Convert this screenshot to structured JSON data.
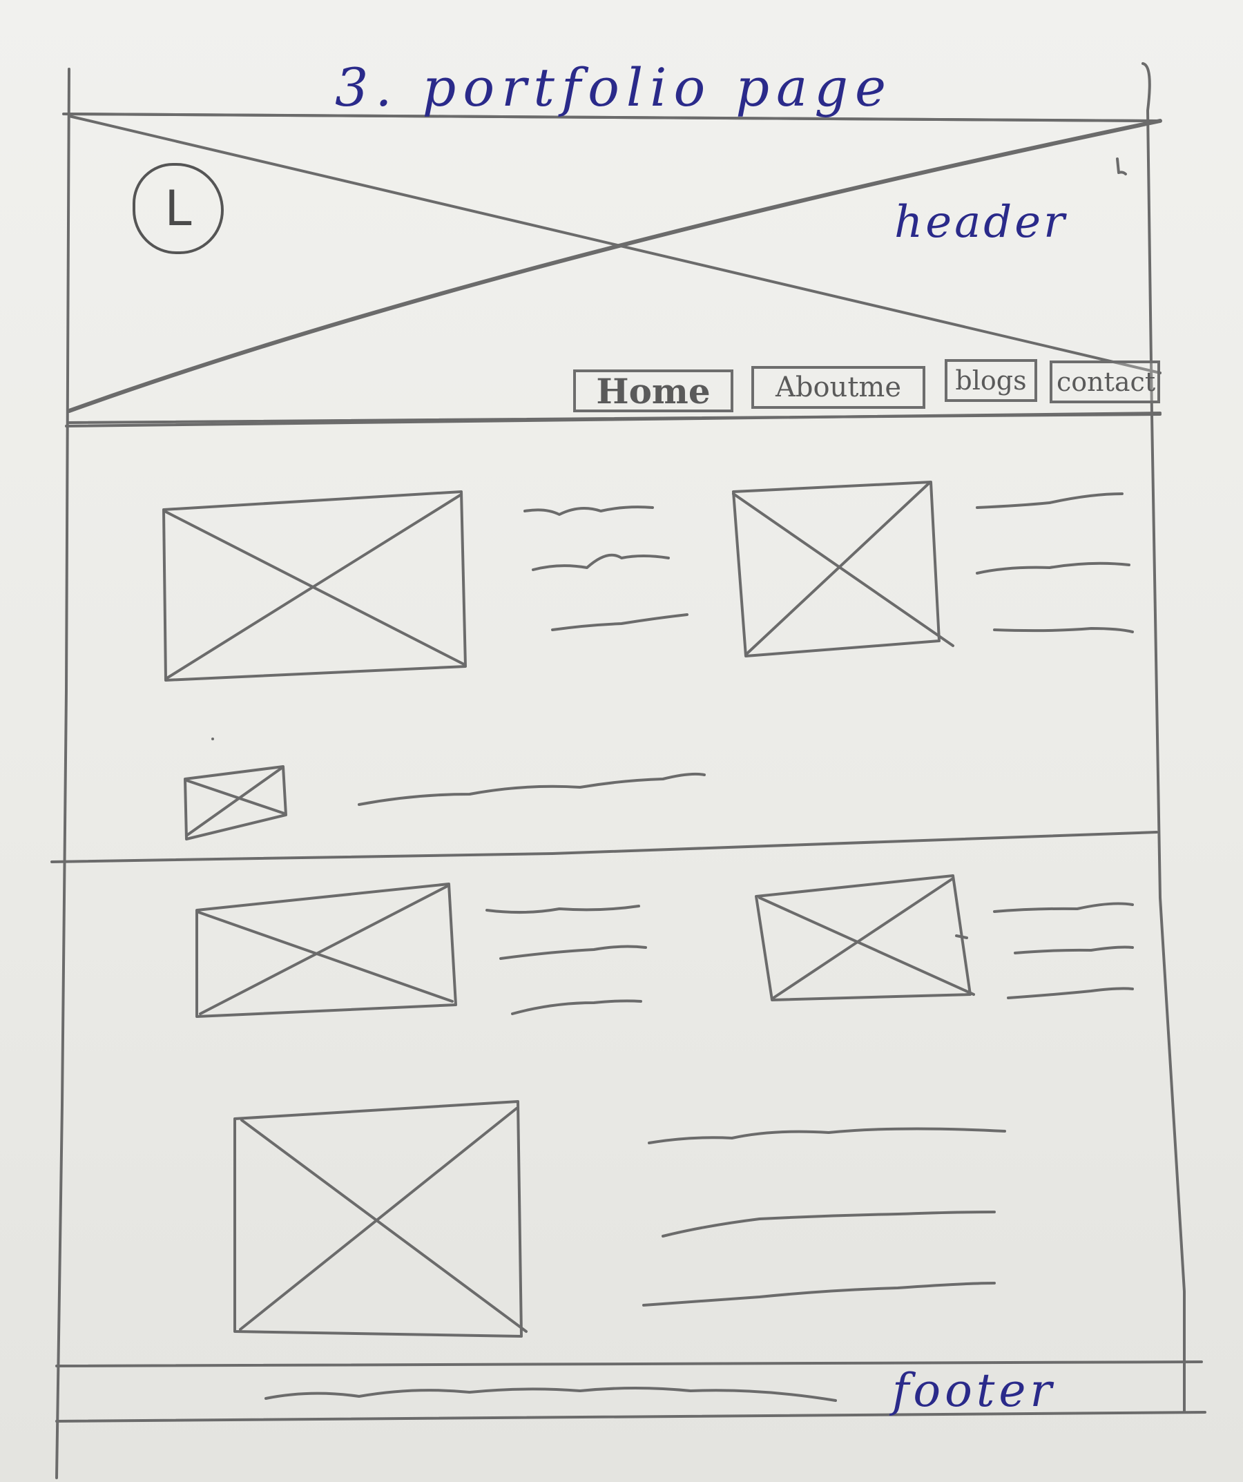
{
  "page_title": "3. portfolio page",
  "header": {
    "label": "header",
    "logo_letter": "L",
    "nav": [
      {
        "label": "Home"
      },
      {
        "label": "Aboutme"
      },
      {
        "label": "blogs"
      },
      {
        "label": "contact"
      }
    ]
  },
  "footer": {
    "label": "footer"
  },
  "colors": {
    "pencil": "#6b6b6b",
    "ink": "#2a2a8a",
    "paper": "#eeeeea"
  }
}
